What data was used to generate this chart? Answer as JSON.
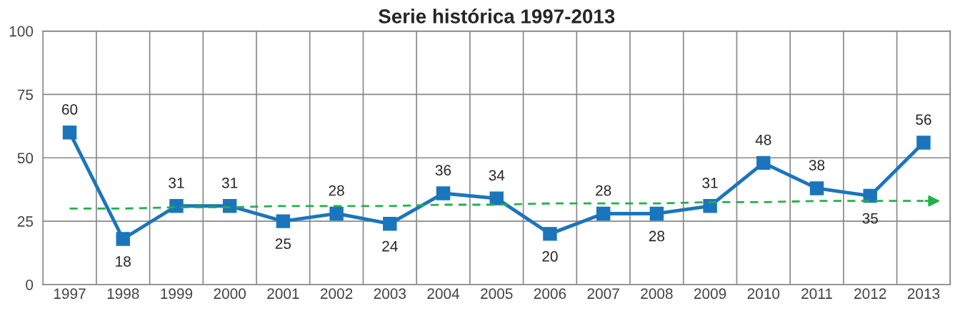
{
  "chart_data": {
    "type": "line",
    "title": "Serie histórica 1997-2013",
    "categories": [
      "1997",
      "1998",
      "1999",
      "2000",
      "2001",
      "2002",
      "2003",
      "2004",
      "2005",
      "2006",
      "2007",
      "2008",
      "2009",
      "2010",
      "2011",
      "2012",
      "2013"
    ],
    "series": [
      {
        "color": "#1b75bc",
        "values": [
          60,
          18,
          31,
          31,
          25,
          28,
          24,
          36,
          34,
          20,
          28,
          28,
          31,
          48,
          38,
          35,
          56
        ],
        "value_labels": [
          "60",
          "18",
          "31",
          "31",
          "25",
          "28",
          "24",
          "36",
          "34",
          "20",
          "28",
          "28",
          "31",
          "48",
          "38",
          "35",
          "56"
        ],
        "marker": "square",
        "line_style": "solid"
      },
      {
        "type": "line",
        "color": "#22b14c",
        "values": [
          30,
          30,
          30.5,
          30.5,
          31,
          31,
          31,
          31.5,
          31.5,
          32,
          32,
          32,
          32.5,
          32.5,
          33,
          33,
          33
        ],
        "line_style": "dashed",
        "marker": "none"
      }
    ],
    "ylim": [
      0,
      100
    ],
    "yticks": [
      0,
      25,
      50,
      75,
      100
    ],
    "grid": true
  }
}
